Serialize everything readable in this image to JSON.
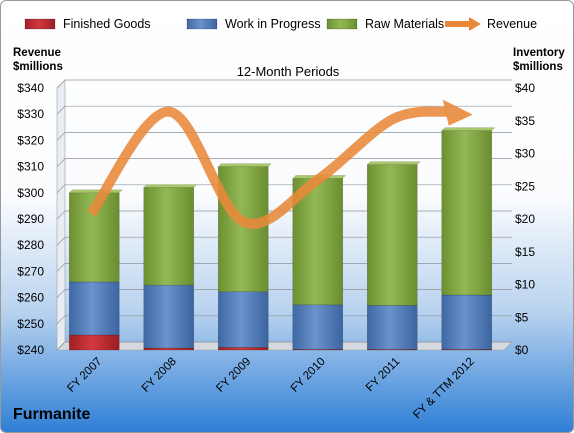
{
  "chart_data": {
    "type": "bar",
    "title": "12-Month Periods",
    "company": "Furmanite",
    "left_axis": {
      "label_line1": "Revenue",
      "label_line2": "$millions",
      "ylim": [
        240,
        340
      ],
      "ticks": [
        240,
        250,
        260,
        270,
        280,
        290,
        300,
        310,
        320,
        330,
        340
      ],
      "tick_labels": [
        "$240",
        "$250",
        "$260",
        "$270",
        "$280",
        "$290",
        "$300",
        "$310",
        "$320",
        "$330",
        "$340"
      ]
    },
    "right_axis": {
      "label_line1": "Inventory",
      "label_line2": "$millions",
      "ylim": [
        0,
        40
      ],
      "ticks": [
        0,
        5,
        10,
        15,
        20,
        25,
        30,
        35,
        40
      ],
      "tick_labels": [
        "$0",
        "$5",
        "$10",
        "$15",
        "$20",
        "$25",
        "$30",
        "$35",
        "$40"
      ]
    },
    "categories": [
      "FY 2007",
      "FY 2008",
      "FY 2009",
      "FY 2010",
      "FY 2011",
      "FY & TTM 2012"
    ],
    "series": [
      {
        "name": "Finished Goods",
        "kind": "stacked-bar",
        "axis": "right",
        "color": "#c0282d",
        "values": [
          2.3,
          0.3,
          0.4,
          0.1,
          0.1,
          0.1
        ]
      },
      {
        "name": "Work in Progress",
        "kind": "stacked-bar",
        "axis": "right",
        "color": "#4f7ab8",
        "values": [
          8.1,
          9.6,
          8.5,
          6.8,
          6.7,
          8.3
        ]
      },
      {
        "name": "Raw Materials",
        "kind": "stacked-bar",
        "axis": "right",
        "color": "#7fa33d",
        "values": [
          13.6,
          14.9,
          19.1,
          19.3,
          21.5,
          25.1
        ]
      },
      {
        "name": "Revenue",
        "kind": "line",
        "axis": "left",
        "color": "#e8893a",
        "values": [
          292,
          331,
          289,
          305,
          328,
          331
        ]
      }
    ],
    "legend_position": "top",
    "grid": true
  }
}
